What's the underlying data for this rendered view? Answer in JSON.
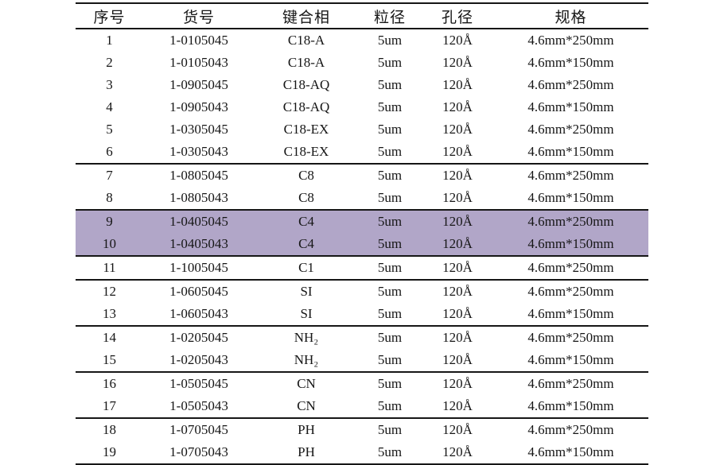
{
  "page": {
    "background_color": "#ffffff",
    "text_color": "#161616"
  },
  "table": {
    "rule_color": "#161616",
    "highlight_color": "#b1a6c8",
    "columns": [
      {
        "key": "no",
        "label": "序号"
      },
      {
        "key": "code",
        "label": "货号"
      },
      {
        "key": "phase",
        "label": "键合相"
      },
      {
        "key": "size",
        "label": "粒径"
      },
      {
        "key": "pore",
        "label": "孔径"
      },
      {
        "key": "spec",
        "label": "规格"
      }
    ],
    "rows": [
      {
        "no": "1",
        "code": "1-0105045",
        "phase": "C18-A",
        "size": "5um",
        "pore": "120Å",
        "spec": "4.6mm*250mm",
        "highlighted": false,
        "rule_below": false
      },
      {
        "no": "2",
        "code": "1-0105043",
        "phase": "C18-A",
        "size": "5um",
        "pore": "120Å",
        "spec": "4.6mm*150mm",
        "highlighted": false,
        "rule_below": false
      },
      {
        "no": "3",
        "code": "1-0905045",
        "phase": "C18-AQ",
        "size": "5um",
        "pore": "120Å",
        "spec": "4.6mm*250mm",
        "highlighted": false,
        "rule_below": false
      },
      {
        "no": "4",
        "code": "1-0905043",
        "phase": "C18-AQ",
        "size": "5um",
        "pore": "120Å",
        "spec": "4.6mm*150mm",
        "highlighted": false,
        "rule_below": false
      },
      {
        "no": "5",
        "code": "1-0305045",
        "phase": "C18-EX",
        "size": "5um",
        "pore": "120Å",
        "spec": "4.6mm*250mm",
        "highlighted": false,
        "rule_below": false
      },
      {
        "no": "6",
        "code": "1-0305043",
        "phase": "C18-EX",
        "size": "5um",
        "pore": "120Å",
        "spec": "4.6mm*150mm",
        "highlighted": false,
        "rule_below": true
      },
      {
        "no": "7",
        "code": "1-0805045",
        "phase": "C8",
        "size": "5um",
        "pore": "120Å",
        "spec": "4.6mm*250mm",
        "highlighted": false,
        "rule_below": false
      },
      {
        "no": "8",
        "code": "1-0805043",
        "phase": "C8",
        "size": "5um",
        "pore": "120Å",
        "spec": "4.6mm*150mm",
        "highlighted": false,
        "rule_below": true
      },
      {
        "no": "9",
        "code": "1-0405045",
        "phase": "C4",
        "size": "5um",
        "pore": "120Å",
        "spec": "4.6mm*250mm",
        "highlighted": true,
        "rule_below": false
      },
      {
        "no": "10",
        "code": "1-0405043",
        "phase": "C4",
        "size": "5um",
        "pore": "120Å",
        "spec": "4.6mm*150mm",
        "highlighted": true,
        "rule_below": true
      },
      {
        "no": "11",
        "code": "1-1005045",
        "phase": "C1",
        "size": "5um",
        "pore": "120Å",
        "spec": "4.6mm*250mm",
        "highlighted": false,
        "rule_below": true
      },
      {
        "no": "12",
        "code": "1-0605045",
        "phase": "SI",
        "size": "5um",
        "pore": "120Å",
        "spec": "4.6mm*250mm",
        "highlighted": false,
        "rule_below": false
      },
      {
        "no": "13",
        "code": "1-0605043",
        "phase": "SI",
        "size": "5um",
        "pore": "120Å",
        "spec": "4.6mm*150mm",
        "highlighted": false,
        "rule_below": true
      },
      {
        "no": "14",
        "code": "1-0205045",
        "phase": "NH₂",
        "size": "5um",
        "pore": "120Å",
        "spec": "4.6mm*250mm",
        "highlighted": false,
        "rule_below": false
      },
      {
        "no": "15",
        "code": "1-0205043",
        "phase": "NH₂",
        "size": "5um",
        "pore": "120Å",
        "spec": "4.6mm*150mm",
        "highlighted": false,
        "rule_below": true
      },
      {
        "no": "16",
        "code": "1-0505045",
        "phase": "CN",
        "size": "5um",
        "pore": "120Å",
        "spec": "4.6mm*250mm",
        "highlighted": false,
        "rule_below": false
      },
      {
        "no": "17",
        "code": "1-0505043",
        "phase": "CN",
        "size": "5um",
        "pore": "120Å",
        "spec": "4.6mm*150mm",
        "highlighted": false,
        "rule_below": true
      },
      {
        "no": "18",
        "code": "1-0705045",
        "phase": "PH",
        "size": "5um",
        "pore": "120Å",
        "spec": "4.6mm*250mm",
        "highlighted": false,
        "rule_below": false
      },
      {
        "no": "19",
        "code": "1-0705043",
        "phase": "PH",
        "size": "5um",
        "pore": "120Å",
        "spec": "4.6mm*150mm",
        "highlighted": false,
        "rule_below": true
      }
    ]
  }
}
